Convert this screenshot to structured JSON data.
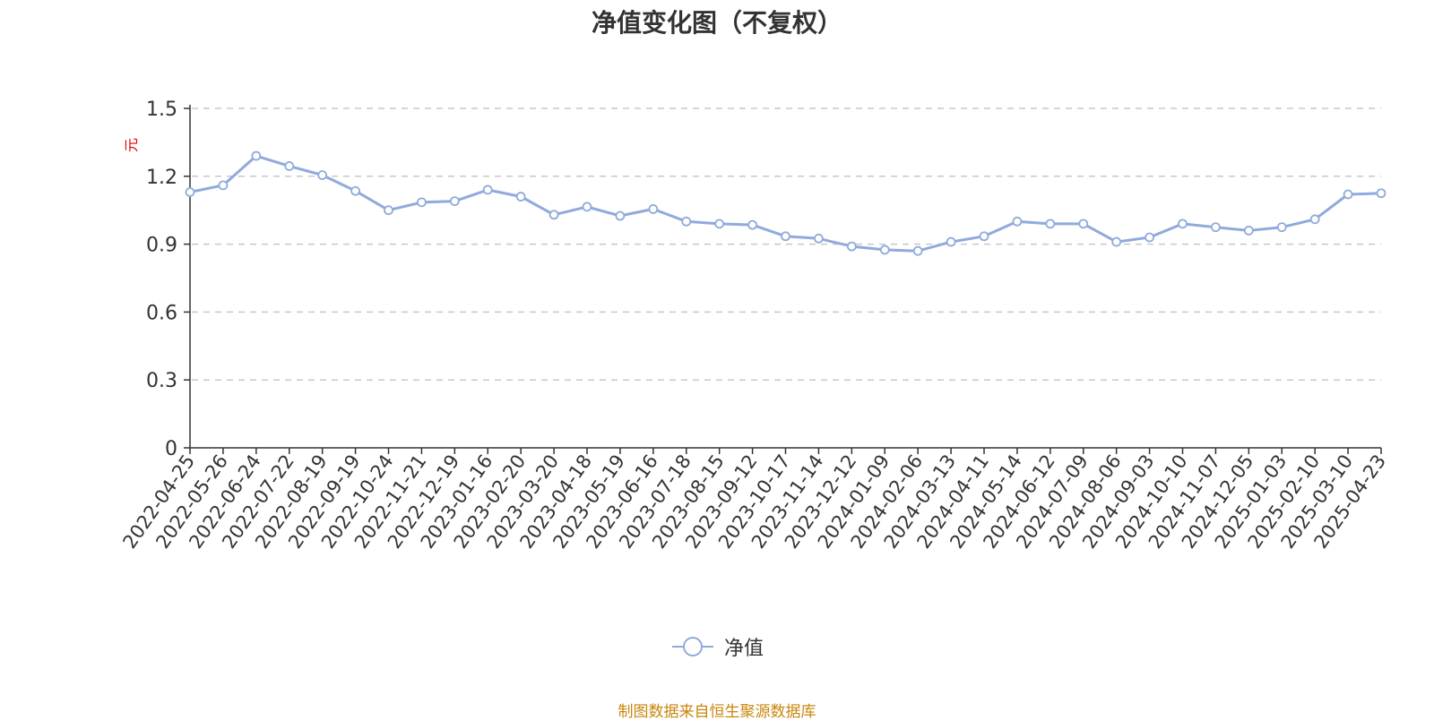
{
  "chart_data": {
    "type": "line",
    "title": "净值变化图（不复权）",
    "ylabel": "元",
    "xlabel": "",
    "ylim": [
      0,
      1.5
    ],
    "yticks": [
      0,
      0.3,
      0.6,
      0.9,
      1.2,
      1.5
    ],
    "ytick_labels": [
      "0",
      "0.3",
      "0.6",
      "0.9",
      "1.2",
      "1.5"
    ],
    "grid": true,
    "legend_position": "bottom-center",
    "x_tick_labels": [
      "2022-04-25",
      "2022-05-26",
      "2022-06-24",
      "2022-07-22",
      "2022-08-19",
      "2022-09-19",
      "2022-10-24",
      "2022-11-21",
      "2022-12-19",
      "2023-01-16",
      "2023-02-20",
      "2023-03-20",
      "2023-04-18",
      "2023-05-19",
      "2023-06-16",
      "2023-07-18",
      "2023-08-15",
      "2023-09-12",
      "2023-10-17",
      "2023-11-14",
      "2023-12-12",
      "2024-01-09",
      "2024-02-06",
      "2024-03-13",
      "2024-04-11",
      "2024-05-14",
      "2024-06-12",
      "2024-07-09",
      "2024-08-06",
      "2024-09-03",
      "2024-10-10",
      "2024-11-07",
      "2024-12-05",
      "2025-01-03",
      "2025-02-10",
      "2025-03-10",
      "2025-04-23"
    ],
    "series": [
      {
        "name": "净值",
        "color": "#8faadc",
        "x": [
          "2022-04-25",
          "2022-05-26",
          "2022-06-24",
          "2022-07-22",
          "2022-08-19",
          "2022-09-19",
          "2022-10-24",
          "2022-11-21",
          "2022-12-19",
          "2023-01-16",
          "2023-02-20",
          "2023-03-20",
          "2023-04-18",
          "2023-05-19",
          "2023-06-16",
          "2023-07-18",
          "2023-08-15",
          "2023-09-12",
          "2023-10-17",
          "2023-11-14",
          "2023-12-12",
          "2024-01-09",
          "2024-02-06",
          "2024-03-13",
          "2024-04-11",
          "2024-05-14",
          "2024-06-12",
          "2024-07-09",
          "2024-08-06",
          "2024-09-03",
          "2024-10-10",
          "2024-11-07",
          "2024-12-05",
          "2025-01-03",
          "2025-02-10",
          "2025-03-10",
          "2025-04-23"
        ],
        "values": [
          1.13,
          1.16,
          1.29,
          1.245,
          1.205,
          1.135,
          1.05,
          1.085,
          1.09,
          1.14,
          1.11,
          1.03,
          1.065,
          1.025,
          1.055,
          1.0,
          0.99,
          0.985,
          0.935,
          0.925,
          0.89,
          0.875,
          0.87,
          0.91,
          0.935,
          1.0,
          0.99,
          0.99,
          0.91,
          0.93,
          0.99,
          0.975,
          0.96,
          0.975,
          1.01,
          1.12,
          1.125
        ]
      }
    ]
  },
  "legend": {
    "label": "净值"
  },
  "source_note": "制图数据来自恒生聚源数据库"
}
